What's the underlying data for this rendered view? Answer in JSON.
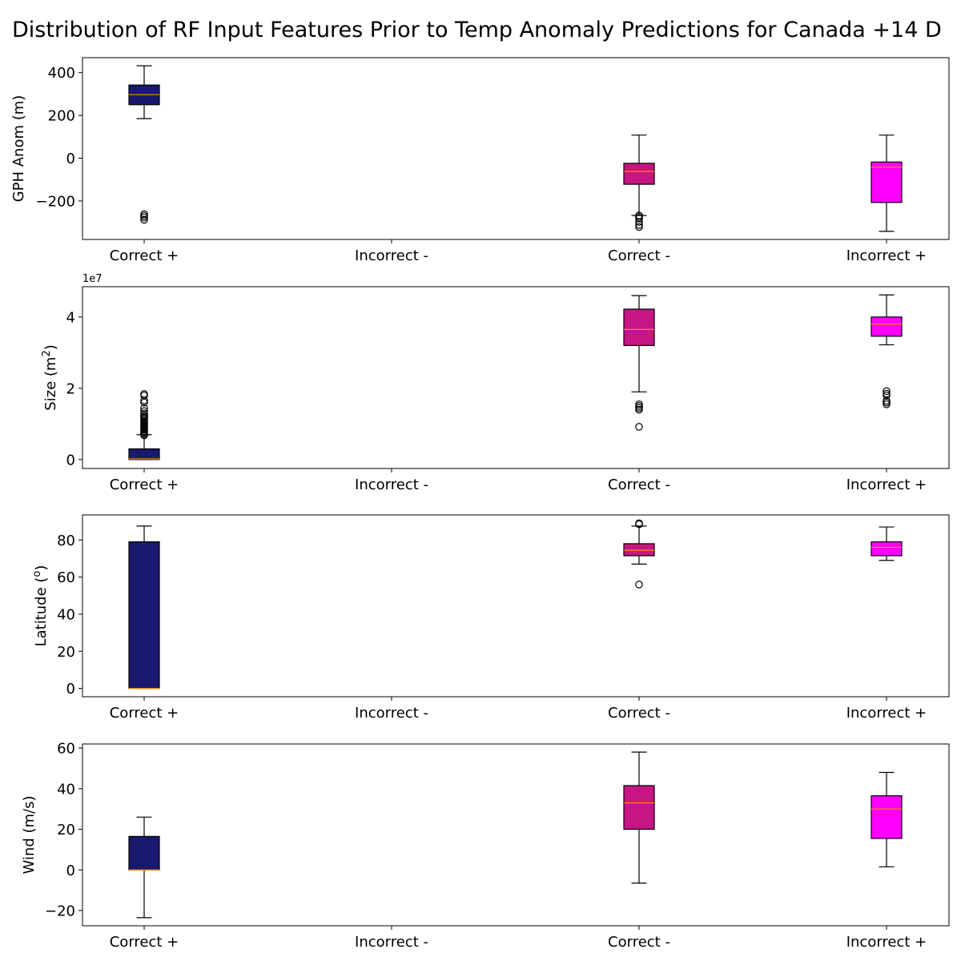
{
  "chart_data": {
    "type": "box",
    "title": "Distribution of RF Input Features Prior to Temp Anomaly Predictions for Canada +14 D",
    "categories": [
      "Correct +",
      "Incorrect -",
      "Correct -",
      "Incorrect +"
    ],
    "colors": [
      "#191970",
      null,
      "#c71585",
      "#ff00ff"
    ],
    "median_color": "#ff8c00",
    "panels": [
      {
        "ylabel": "GPH Anom (m)",
        "ylabel_sup": "",
        "ylabel_suffix": "",
        "offset_label": "",
        "ylim": [
          -380,
          470
        ],
        "yticks": [
          -200,
          0,
          200,
          400
        ],
        "ytick_labels": [
          "−200",
          "0",
          "200",
          "400"
        ],
        "boxes": [
          {
            "category": "Correct +",
            "whislo": 185,
            "q1": 250,
            "med": 297,
            "q3": 342,
            "whishi": 432,
            "fliers": [
              -262,
              -270,
              -278,
              -288
            ]
          },
          null,
          {
            "category": "Correct -",
            "whislo": -268,
            "q1": -122,
            "med": -62,
            "q3": -24,
            "whishi": 108,
            "fliers": [
              -268,
              -275,
              -282,
              -298,
              -312,
              -322
            ]
          },
          {
            "category": "Incorrect +",
            "whislo": -342,
            "q1": -207,
            "med": -42,
            "q3": -18,
            "whishi": 108,
            "fliers": []
          }
        ]
      },
      {
        "ylabel": "Size (m",
        "ylabel_sup": "2",
        "ylabel_suffix": ")",
        "offset_label": "1e7",
        "ylim": [
          -0.25,
          4.85
        ],
        "yticks": [
          0,
          2,
          4
        ],
        "ytick_labels": [
          "0",
          "2",
          "4"
        ],
        "boxes": [
          {
            "category": "Correct +",
            "whislo": 0.0,
            "q1": 0.0,
            "med": 0.02,
            "q3": 0.3,
            "whishi": 0.7,
            "fliers": [
              0.68,
              0.72,
              0.76,
              0.8,
              0.84,
              0.88,
              0.92,
              0.96,
              1.0,
              1.04,
              1.08,
              1.12,
              1.16,
              1.2,
              1.24,
              1.3,
              1.36,
              1.44,
              1.6,
              1.66,
              1.8,
              1.84
            ]
          },
          null,
          {
            "category": "Correct -",
            "whislo": 1.9,
            "q1": 3.2,
            "med": 3.65,
            "q3": 4.22,
            "whishi": 4.6,
            "fliers": [
              1.4,
              1.45,
              1.5,
              1.55,
              0.92
            ]
          },
          {
            "category": "Incorrect +",
            "whislo": 3.22,
            "q1": 3.46,
            "med": 3.8,
            "q3": 4.0,
            "whishi": 4.62,
            "fliers": [
              1.55,
              1.6,
              1.65,
              1.8,
              1.85,
              1.92
            ]
          }
        ]
      },
      {
        "ylabel": "Latitude (",
        "ylabel_sup": "o",
        "ylabel_suffix": ")",
        "offset_label": "",
        "ylim": [
          -4.5,
          93.5
        ],
        "yticks": [
          0,
          20,
          40,
          60,
          80
        ],
        "ytick_labels": [
          "0",
          "20",
          "40",
          "60",
          "80"
        ],
        "boxes": [
          {
            "category": "Correct +",
            "whislo": 0,
            "q1": 0,
            "med": 0,
            "q3": 79,
            "whishi": 87.5,
            "fliers": []
          },
          null,
          {
            "category": "Correct -",
            "whislo": 67,
            "q1": 71.5,
            "med": 74.5,
            "q3": 78,
            "whishi": 87.5,
            "fliers": [
              88.5,
              89,
              56
            ]
          },
          {
            "category": "Incorrect +",
            "whislo": 69,
            "q1": 71.5,
            "med": 76,
            "q3": 79,
            "whishi": 87,
            "fliers": []
          }
        ]
      },
      {
        "ylabel": "Wind (m/s)",
        "ylabel_sup": "",
        "ylabel_suffix": "",
        "offset_label": "",
        "ylim": [
          -27.5,
          62
        ],
        "yticks": [
          -20,
          0,
          20,
          40,
          60
        ],
        "ytick_labels": [
          "−20",
          "0",
          "20",
          "40",
          "60"
        ],
        "boxes": [
          {
            "category": "Correct +",
            "whislo": -23.5,
            "q1": 0,
            "med": 0,
            "q3": 16.5,
            "whishi": 26,
            "fliers": []
          },
          null,
          {
            "category": "Correct -",
            "whislo": -6.5,
            "q1": 20,
            "med": 33,
            "q3": 41.5,
            "whishi": 58,
            "fliers": []
          },
          {
            "category": "Incorrect +",
            "whislo": 1.5,
            "q1": 15.5,
            "med": 30,
            "q3": 36.5,
            "whishi": 48,
            "fliers": []
          }
        ]
      }
    ]
  }
}
